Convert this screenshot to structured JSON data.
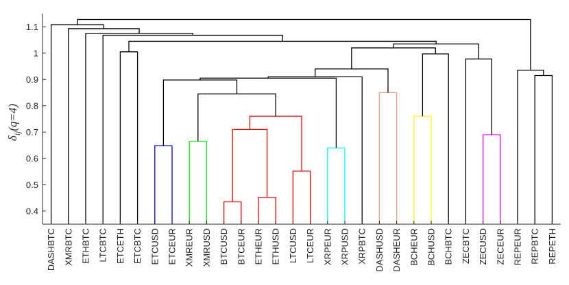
{
  "chart_data": {
    "type": "dendrogram",
    "title": "",
    "xlabel": "",
    "ylabel": "δ_ij(q=4)",
    "ylabel_parts": {
      "delta": "δ",
      "sub": "ij",
      "arg": "(q=4)"
    },
    "ylim": [
      0.35,
      1.15
    ],
    "yticks": [
      0.4,
      0.5,
      0.6,
      0.7,
      0.8,
      0.9,
      1,
      1.1
    ],
    "ytick_labels": [
      "0.4",
      "0.5",
      "0.6",
      "0.7",
      "0.8",
      "0.9",
      "1",
      "1.1"
    ],
    "leaves": [
      "DASHBTC",
      "XMRBTC",
      "ETHBTC",
      "LTCBTC",
      "ETCETH",
      "ETCBTC",
      "ETCUSD",
      "ETCEUR",
      "XMREUR",
      "XMRUSD",
      "BTCUSD",
      "BTCEUR",
      "ETHEUR",
      "ETHUSD",
      "LTCUSD",
      "LTCEUR",
      "XRPEUR",
      "XRPUSD",
      "XRPBTC",
      "DASHUSD",
      "DASHEUR",
      "BCHEUR",
      "BCHUSD",
      "BCHBTC",
      "ZECBTC",
      "ZECUSD",
      "ZECEUR",
      "REPEUR",
      "REPBTC",
      "REPETH"
    ],
    "merges": [
      {
        "id": "m1",
        "left": "BTCUSD",
        "right": "BTCEUR",
        "height": 0.435,
        "color": "#ff0000"
      },
      {
        "id": "m2",
        "left": "ETHEUR",
        "right": "ETHUSD",
        "height": 0.452,
        "color": "#ff0000"
      },
      {
        "id": "m3",
        "left": "LTCUSD",
        "right": "LTCEUR",
        "height": 0.552,
        "color": "#ff0000"
      },
      {
        "id": "m4",
        "left": "XRPEUR",
        "right": "XRPUSD",
        "height": 0.64,
        "color": "#00ffff"
      },
      {
        "id": "m5",
        "left": "ETCUSD",
        "right": "ETCEUR",
        "height": 0.648,
        "color": "#0000cc"
      },
      {
        "id": "m6",
        "left": "XMREUR",
        "right": "XMRUSD",
        "height": 0.665,
        "color": "#00ee00"
      },
      {
        "id": "m7",
        "left": "ZECUSD",
        "right": "ZECEUR",
        "height": 0.69,
        "color": "#ee00ee"
      },
      {
        "id": "m8",
        "left": "m1",
        "right": "m2",
        "height": 0.71,
        "color": "#ff0000"
      },
      {
        "id": "m9",
        "left": "m8",
        "right": "m3",
        "height": 0.76,
        "color": "#ff0000"
      },
      {
        "id": "m10",
        "left": "BCHEUR",
        "right": "BCHUSD",
        "height": 0.76,
        "color": "#ffff00"
      },
      {
        "id": "m11",
        "left": "m6",
        "right": "m9",
        "height": 0.845,
        "color": "#000000"
      },
      {
        "id": "m12",
        "left": "DASHUSD",
        "right": "DASHEUR",
        "height": 0.85,
        "color": "#ff9f80"
      },
      {
        "id": "m13",
        "left": "m5",
        "right": "m11",
        "height": 0.898,
        "color": "#000000"
      },
      {
        "id": "m14",
        "left": "m13",
        "right": "m4",
        "height": 0.905,
        "color": "#000000"
      },
      {
        "id": "m15",
        "left": "m14",
        "right": "XRPBTC",
        "height": 0.91,
        "color": "#000000"
      },
      {
        "id": "m16",
        "left": "REPBTC",
        "right": "REPETH",
        "height": 0.915,
        "color": "#000000"
      },
      {
        "id": "m17",
        "left": "REPEUR",
        "right": "m16",
        "height": 0.935,
        "color": "#000000"
      },
      {
        "id": "m18",
        "left": "m15",
        "right": "m12",
        "height": 0.94,
        "color": "#000000"
      },
      {
        "id": "m19",
        "left": "ZECBTC",
        "right": "m7",
        "height": 0.978,
        "color": "#000000"
      },
      {
        "id": "m20",
        "left": "m10",
        "right": "BCHBTC",
        "height": 0.997,
        "color": "#000000"
      },
      {
        "id": "m21",
        "left": "ETCETH",
        "right": "ETCBTC",
        "height": 1.005,
        "color": "#000000"
      },
      {
        "id": "m22",
        "left": "m18",
        "right": "m20",
        "height": 1.02,
        "color": "#000000"
      },
      {
        "id": "m23",
        "left": "m22",
        "right": "m19",
        "height": 1.035,
        "color": "#000000"
      },
      {
        "id": "m24",
        "left": "m21",
        "right": "m23",
        "height": 1.045,
        "color": "#000000"
      },
      {
        "id": "m25",
        "left": "LTCBTC",
        "right": "m24",
        "height": 1.068,
        "color": "#000000"
      },
      {
        "id": "m26",
        "left": "ETHBTC",
        "right": "m25",
        "height": 1.075,
        "color": "#000000"
      },
      {
        "id": "m27",
        "left": "XMRBTC",
        "right": "m26",
        "height": 1.093,
        "color": "#000000"
      },
      {
        "id": "m28",
        "left": "DASHBTC",
        "right": "m27",
        "height": 1.108,
        "color": "#000000"
      },
      {
        "id": "m29",
        "left": "m28",
        "right": "m17",
        "height": 1.128,
        "color": "#000000"
      }
    ]
  }
}
